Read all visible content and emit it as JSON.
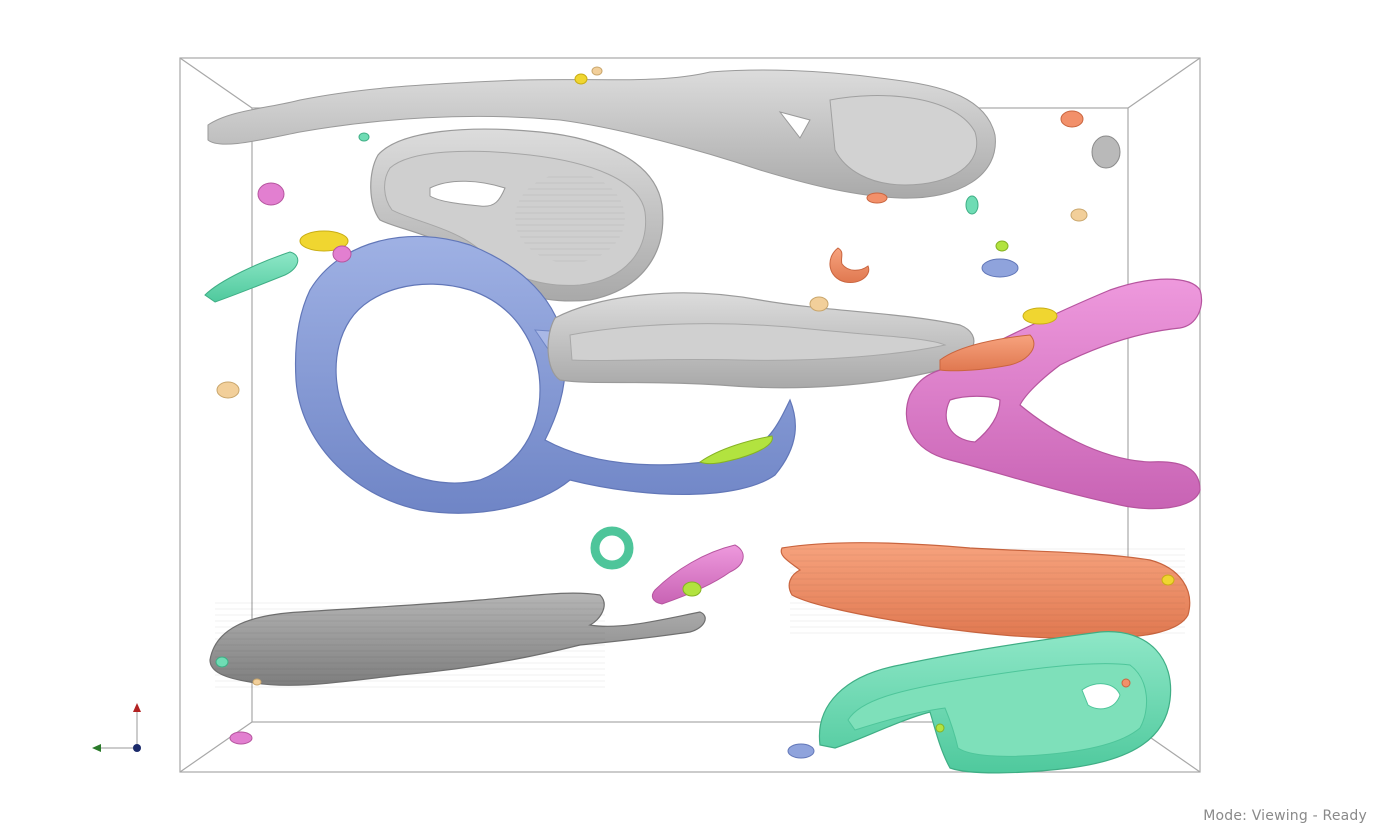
{
  "status": {
    "mode_label": "Mode: Viewing - Ready"
  },
  "scene": {
    "type": "3d-segmentation-viewer",
    "colors": {
      "background": "#ffffff",
      "bounding_box": "#a8a8a8",
      "gray": "#c8c8c8",
      "gray_dark": "#9a9a9a",
      "blue": "#8fa3dc",
      "pink": "#e27fd0",
      "orange": "#f2906a",
      "teal": "#6fdcb4",
      "yellow": "#f0d630",
      "lime": "#b2e33f",
      "tan": "#f2cf9a"
    },
    "axes_icon": {
      "colors": {
        "x": "#2a7a2a",
        "y": "#b22222",
        "z": "#1a2a6a"
      }
    }
  }
}
